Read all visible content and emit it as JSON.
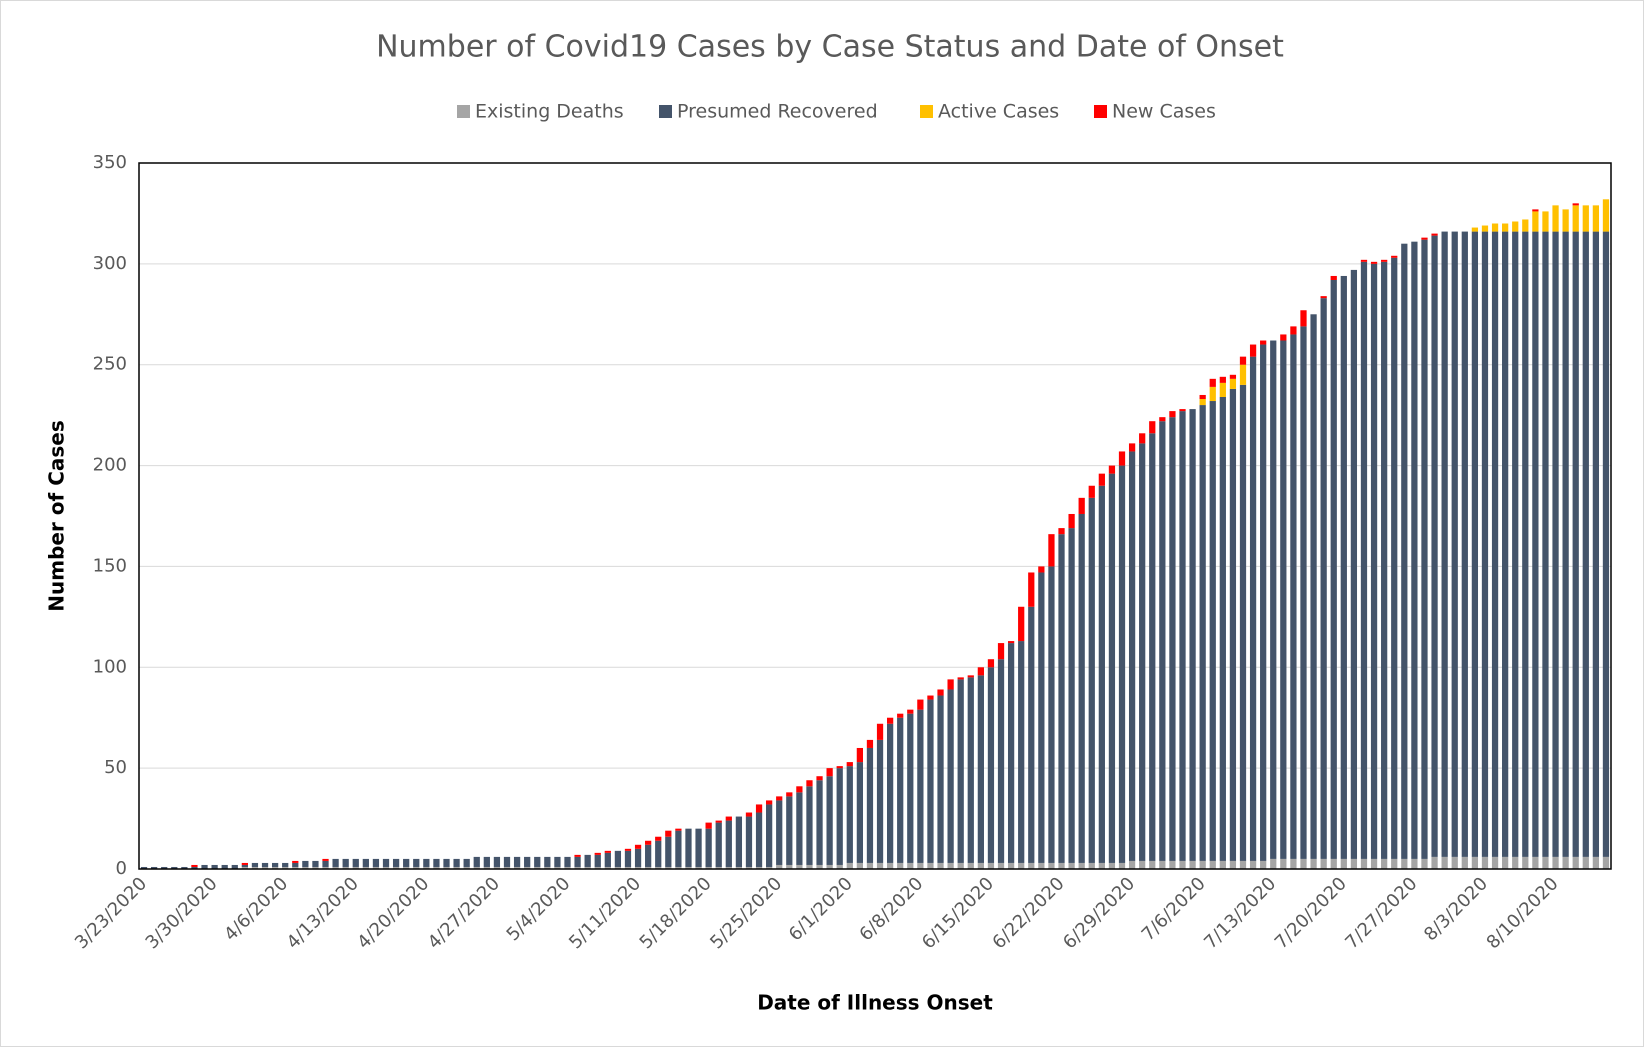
{
  "chart_data": {
    "type": "stacked_bar",
    "title": "Number of Covid19 Cases by Case Status and Date of Onset",
    "x_label": "Date of Illness Onset",
    "y_label": "Number of Cases",
    "ylim": [
      0,
      350
    ],
    "yticks": [
      0,
      50,
      100,
      150,
      200,
      250,
      300,
      350
    ],
    "grid": true,
    "legend": "top",
    "categories": [
      "3/23/2020",
      null,
      null,
      null,
      null,
      null,
      null,
      "3/30/2020",
      null,
      null,
      null,
      null,
      null,
      null,
      "4/6/2020",
      null,
      null,
      null,
      null,
      null,
      null,
      "4/13/2020",
      null,
      null,
      null,
      null,
      null,
      null,
      "4/20/2020",
      null,
      null,
      null,
      null,
      null,
      null,
      "4/27/2020",
      null,
      null,
      null,
      null,
      null,
      null,
      "5/4/2020",
      null,
      null,
      null,
      null,
      null,
      null,
      "5/11/2020",
      null,
      null,
      null,
      null,
      null,
      null,
      "5/18/2020",
      null,
      null,
      null,
      null,
      null,
      null,
      "5/25/2020",
      null,
      null,
      null,
      null,
      null,
      null,
      "6/1/2020",
      null,
      null,
      null,
      null,
      null,
      null,
      "6/8/2020",
      null,
      null,
      null,
      null,
      null,
      null,
      "6/15/2020",
      null,
      null,
      null,
      null,
      null,
      null,
      "6/22/2020",
      null,
      null,
      null,
      null,
      null,
      null,
      "6/29/2020",
      null,
      null,
      null,
      null,
      null,
      null,
      "7/6/2020",
      null,
      null,
      null,
      null,
      null,
      null,
      "7/13/2020",
      null,
      null,
      null,
      null,
      null,
      null,
      "7/20/2020",
      null,
      null,
      null,
      null,
      null,
      null,
      "7/27/2020",
      null,
      null,
      null,
      null,
      null,
      null,
      "8/3/2020",
      null,
      null,
      null,
      null,
      null,
      null,
      "8/10/2020",
      null,
      null,
      null,
      null,
      null
    ],
    "series": [
      {
        "name": "Existing Deaths",
        "color": "#a5a5a5",
        "values": [
          0,
          0,
          0,
          0,
          0,
          0,
          0,
          0,
          0,
          0,
          1,
          1,
          1,
          1,
          1,
          1,
          1,
          1,
          1,
          1,
          1,
          1,
          1,
          1,
          1,
          1,
          1,
          1,
          1,
          1,
          1,
          1,
          1,
          1,
          1,
          1,
          1,
          1,
          1,
          1,
          1,
          1,
          1,
          1,
          1,
          1,
          1,
          1,
          1,
          1,
          1,
          1,
          1,
          1,
          1,
          1,
          1,
          1,
          1,
          1,
          1,
          1,
          1,
          2,
          2,
          2,
          2,
          2,
          2,
          2,
          3,
          3,
          3,
          3,
          3,
          3,
          3,
          3,
          3,
          3,
          3,
          3,
          3,
          3,
          3,
          3,
          3,
          3,
          3,
          3,
          3,
          3,
          3,
          3,
          3,
          3,
          3,
          3,
          4,
          4,
          4,
          4,
          4,
          4,
          4,
          4,
          4,
          4,
          4,
          4,
          4,
          4,
          5,
          5,
          5,
          5,
          5,
          5,
          5,
          5,
          5,
          5,
          5,
          5,
          5,
          5,
          5,
          5,
          6,
          6,
          6,
          6,
          6,
          6,
          6,
          6,
          6,
          6,
          6,
          6,
          6,
          6,
          6,
          6,
          6,
          6
        ]
      },
      {
        "name": "Presumed Recovered",
        "color": "#44546a",
        "values": [
          1,
          1,
          1,
          1,
          1,
          1,
          2,
          2,
          2,
          2,
          1,
          2,
          2,
          2,
          2,
          2,
          3,
          3,
          3,
          4,
          4,
          4,
          4,
          4,
          4,
          4,
          4,
          4,
          4,
          4,
          4,
          4,
          4,
          5,
          5,
          5,
          5,
          5,
          5,
          5,
          5,
          5,
          5,
          5,
          6,
          6,
          7,
          8,
          8,
          9,
          11,
          13,
          15,
          18,
          19,
          19,
          19,
          22,
          23,
          25,
          25,
          27,
          31,
          32,
          34,
          36,
          39,
          42,
          44,
          48,
          48,
          50,
          57,
          61,
          69,
          72,
          74,
          76,
          81,
          83,
          86,
          91,
          92,
          93,
          97,
          101,
          109,
          110,
          127,
          144,
          147,
          163,
          166,
          173,
          181,
          187,
          193,
          197,
          203,
          207,
          212,
          218,
          220,
          223,
          224,
          226,
          228,
          230,
          234,
          236,
          250,
          256,
          257,
          257,
          260,
          264,
          270,
          278,
          287,
          289,
          292,
          296,
          295,
          296,
          298,
          305,
          306,
          307,
          308,
          310,
          310,
          310,
          310,
          310,
          310,
          310,
          310,
          310,
          310,
          310,
          310,
          310,
          310,
          310,
          310,
          310
        ]
      },
      {
        "name": "Active Cases",
        "color": "#ffc000",
        "values": [
          0,
          0,
          0,
          0,
          0,
          0,
          0,
          0,
          0,
          0,
          0,
          0,
          0,
          0,
          0,
          0,
          0,
          0,
          0,
          0,
          0,
          0,
          0,
          0,
          0,
          0,
          0,
          0,
          0,
          0,
          0,
          0,
          0,
          0,
          0,
          0,
          0,
          0,
          0,
          0,
          0,
          0,
          0,
          0,
          0,
          0,
          0,
          0,
          0,
          0,
          0,
          0,
          0,
          0,
          0,
          0,
          0,
          0,
          0,
          0,
          0,
          0,
          0,
          0,
          0,
          0,
          0,
          0,
          0,
          0,
          0,
          0,
          0,
          0,
          0,
          0,
          0,
          0,
          0,
          0,
          0,
          0,
          0,
          0,
          0,
          0,
          0,
          0,
          0,
          0,
          0,
          0,
          0,
          0,
          0,
          0,
          0,
          0,
          0,
          0,
          0,
          0,
          0,
          0,
          0,
          3,
          7,
          7,
          5,
          10,
          0,
          0,
          0,
          0,
          0,
          0,
          0,
          0,
          0,
          0,
          0,
          0,
          0,
          0,
          0,
          0,
          0,
          0,
          0,
          0,
          0,
          0,
          2,
          3,
          4,
          4,
          5,
          6,
          10,
          10,
          13,
          11,
          13,
          13,
          13,
          16
        ]
      },
      {
        "name": "New Cases",
        "color": "#ff0000",
        "values": [
          0,
          0,
          0,
          0,
          0,
          1,
          0,
          0,
          0,
          0,
          1,
          0,
          0,
          0,
          0,
          1,
          0,
          0,
          1,
          0,
          0,
          0,
          0,
          0,
          0,
          0,
          0,
          0,
          0,
          0,
          0,
          0,
          0,
          0,
          0,
          0,
          0,
          0,
          0,
          0,
          0,
          0,
          0,
          1,
          0,
          1,
          1,
          0,
          1,
          2,
          2,
          2,
          3,
          1,
          0,
          0,
          3,
          1,
          2,
          0,
          2,
          4,
          2,
          2,
          2,
          3,
          3,
          2,
          4,
          1,
          2,
          7,
          4,
          8,
          3,
          2,
          2,
          5,
          2,
          3,
          5,
          1,
          1,
          4,
          4,
          8,
          1,
          17,
          17,
          3,
          16,
          3,
          7,
          8,
          6,
          6,
          4,
          7,
          4,
          5,
          6,
          2,
          3,
          1,
          0,
          2,
          4,
          3,
          2,
          4,
          6,
          2,
          0,
          3,
          4,
          8,
          0,
          1,
          2,
          0,
          0,
          1,
          1,
          1,
          1,
          0,
          0,
          1,
          1,
          0,
          0,
          0,
          0,
          0,
          0,
          0,
          0,
          0,
          1,
          0,
          0,
          0,
          1,
          0,
          0,
          0
        ]
      }
    ]
  }
}
